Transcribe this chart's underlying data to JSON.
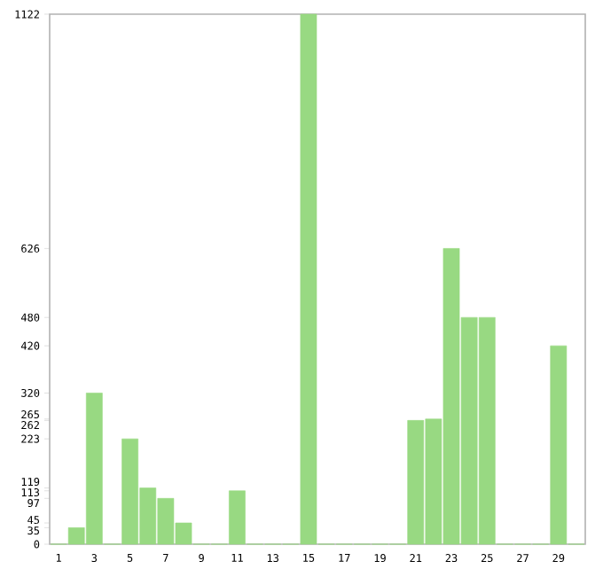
{
  "chart_data": {
    "type": "bar",
    "categories": [
      "1",
      null,
      "3",
      null,
      "5",
      null,
      "7",
      null,
      "9",
      null,
      "11",
      null,
      "13",
      null,
      "15",
      null,
      "17",
      null,
      "19",
      null,
      "21",
      null,
      "23",
      null,
      "25",
      null,
      "27",
      null,
      "29",
      null
    ],
    "values": [
      0,
      35,
      320,
      0,
      223,
      119,
      97,
      45,
      0,
      0,
      113,
      0,
      0,
      0,
      1122,
      0,
      0,
      0,
      0,
      0,
      262,
      265,
      626,
      480,
      480,
      0,
      0,
      0,
      420,
      0
    ],
    "color": "#98d982",
    "ylim": [
      0,
      1122
    ],
    "yticks": [
      0,
      35,
      45,
      97,
      113,
      119,
      223,
      262,
      265,
      320,
      420,
      480,
      626,
      1122
    ]
  }
}
